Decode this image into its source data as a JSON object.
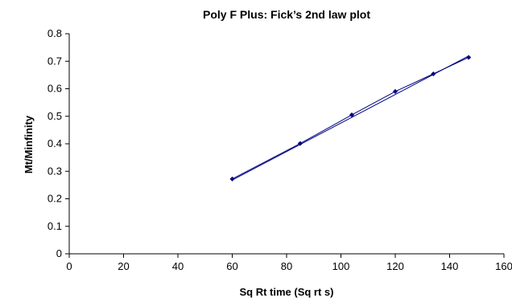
{
  "chart_data": {
    "type": "scatter",
    "title": "Poly F Plus: Fick’s 2nd law plot",
    "xlabel": "Sq Rt time (Sq rt s)",
    "ylabel": "Mt/Minfinity",
    "xlim": [
      0,
      160
    ],
    "ylim": [
      0,
      0.8
    ],
    "xticks": [
      0,
      20,
      40,
      60,
      80,
      100,
      120,
      140,
      160
    ],
    "xtick_labels": [
      "0",
      "20",
      "40",
      "60",
      "80",
      "100",
      "120",
      "140",
      "160"
    ],
    "yticks": [
      0,
      0.1,
      0.2,
      0.3,
      0.4,
      0.5,
      0.6,
      0.7,
      0.8
    ],
    "ytick_labels": [
      "0",
      "0.1",
      "0.2",
      "0.3",
      "0.4",
      "0.5",
      "0.6",
      "0.7",
      "0.8"
    ],
    "grid": false,
    "legend": "none",
    "series": [
      {
        "x": [
          60,
          85,
          104,
          120,
          134,
          147
        ],
        "y": [
          0.272,
          0.401,
          0.505,
          0.59,
          0.654,
          0.714
        ],
        "color": "#000080",
        "marker": "diamond",
        "connect": true
      }
    ],
    "trendline": {
      "type": "linear",
      "x": [
        60,
        147
      ],
      "y": [
        0.268,
        0.719
      ],
      "color": "#000080"
    }
  }
}
